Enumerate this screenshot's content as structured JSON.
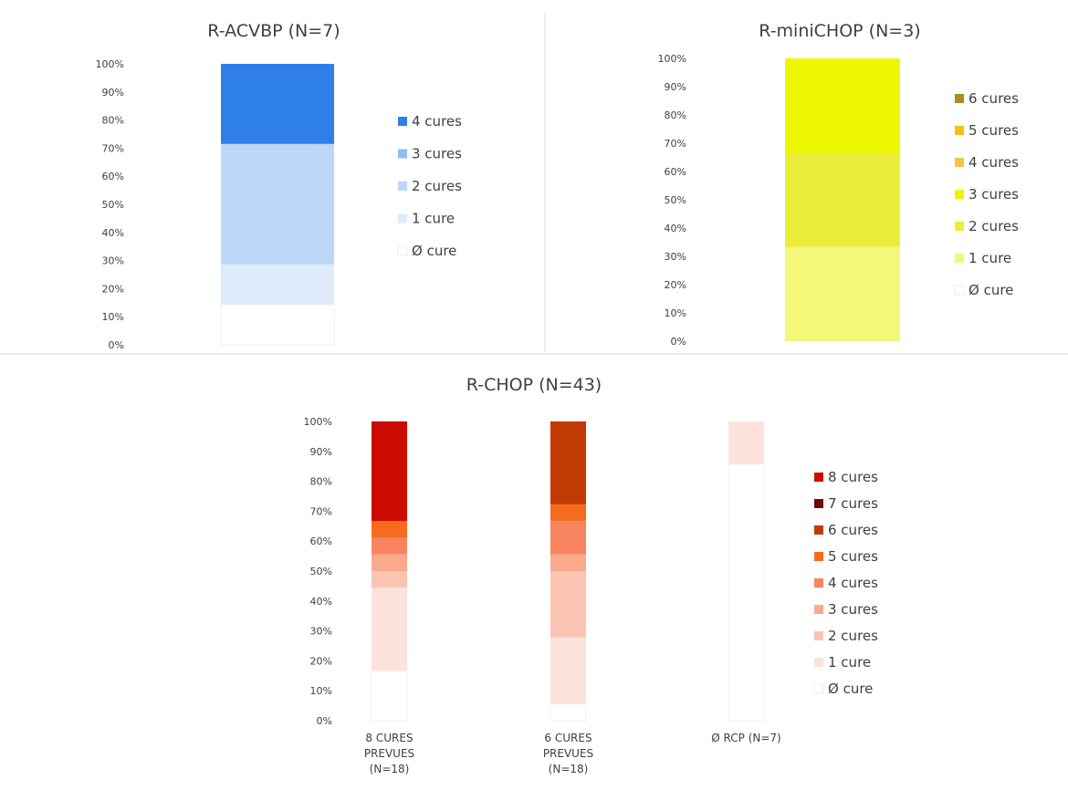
{
  "chart_data": [
    {
      "type": "bar",
      "stacked": true,
      "title": "R-ACVBP (N=7)",
      "ylim": [
        0,
        100
      ],
      "yticks": [
        "0%",
        "10%",
        "20%",
        "30%",
        "40%",
        "50%",
        "60%",
        "70%",
        "80%",
        "90%",
        "100%"
      ],
      "categories": [
        ""
      ],
      "series": [
        {
          "name": "Ø cure",
          "color": "#ffffff",
          "values": [
            14.3
          ]
        },
        {
          "name": "1 cure",
          "color": "#ddebfb",
          "values": [
            14.3
          ]
        },
        {
          "name": "2 cures",
          "color": "#bdd7f8",
          "values": [
            42.9
          ]
        },
        {
          "name": "3 cures",
          "color": "#92bdf1",
          "values": [
            0
          ]
        },
        {
          "name": "4 cures",
          "color": "#2f7fe9",
          "values": [
            28.5
          ]
        }
      ],
      "legend": [
        "4 cures",
        "3 cures",
        "2 cures",
        "1 cure",
        "Ø cure"
      ],
      "legend_position": "right"
    },
    {
      "type": "bar",
      "stacked": true,
      "title": "R-miniCHOP (N=3)",
      "ylim": [
        0,
        100
      ],
      "yticks": [
        "0%",
        "10%",
        "20%",
        "30%",
        "40%",
        "50%",
        "60%",
        "70%",
        "80%",
        "90%",
        "100%"
      ],
      "categories": [
        ""
      ],
      "series": [
        {
          "name": "Ø cure",
          "color": "#ffffff",
          "values": [
            0
          ]
        },
        {
          "name": "1 cure",
          "color": "#f3f77a",
          "values": [
            33.3
          ]
        },
        {
          "name": "2 cures",
          "color": "#eaee3a",
          "values": [
            33.3
          ]
        },
        {
          "name": "3  cures",
          "color": "#edf700",
          "values": [
            33.4
          ]
        },
        {
          "name": "4  cures",
          "color": "#f6c344",
          "values": [
            0
          ]
        },
        {
          "name": "5  cures",
          "color": "#f4c20e",
          "values": [
            0
          ]
        },
        {
          "name": "6  cures",
          "color": "#b08c1c",
          "values": [
            0
          ]
        }
      ],
      "legend": [
        "6  cures",
        "5  cures",
        "4  cures",
        "3  cures",
        "2 cures",
        "1 cure",
        "Ø cure"
      ],
      "legend_position": "right"
    },
    {
      "type": "bar",
      "stacked": true,
      "title": "R-CHOP (N=43)",
      "ylim": [
        0,
        100
      ],
      "yticks": [
        "0%",
        "10%",
        "20%",
        "30%",
        "40%",
        "50%",
        "60%",
        "70%",
        "80%",
        "90%",
        "100%"
      ],
      "categories": [
        [
          "8 CURES",
          "PREVUES",
          "(N=18)"
        ],
        [
          "6 CURES",
          "PREVUES",
          "(N=18)"
        ],
        [
          "Ø RCP (N=7)"
        ]
      ],
      "series": [
        {
          "name": "Ø cure",
          "color": "#ffffff",
          "values": [
            16.7,
            5.6,
            85.7
          ]
        },
        {
          "name": "1 cure",
          "color": "#fde3dc",
          "values": [
            27.8,
            22.2,
            14.3
          ]
        },
        {
          "name": "2 cures",
          "color": "#fbc4b2",
          "values": [
            5.5,
            22.2,
            0
          ]
        },
        {
          "name": "3 cures",
          "color": "#f9a98c",
          "values": [
            5.6,
            5.6,
            0
          ]
        },
        {
          "name": "4 cures",
          "color": "#f8845f",
          "values": [
            5.5,
            11.1,
            0
          ]
        },
        {
          "name": "5 cures",
          "color": "#f56c1e",
          "values": [
            5.6,
            5.6,
            0
          ]
        },
        {
          "name": "6 cures",
          "color": "#c23a05",
          "values": [
            0,
            27.7,
            0
          ]
        },
        {
          "name": "7 cures",
          "color": "#6b0a0a",
          "values": [
            0,
            0,
            0
          ]
        },
        {
          "name": "8 cures",
          "color": "#cc0b00",
          "values": [
            33.3,
            0,
            0
          ]
        }
      ],
      "legend": [
        "8 cures",
        "7 cures",
        "6 cures",
        "5 cures",
        "4 cures",
        "3 cures",
        "2 cures",
        "1 cure",
        "Ø cure"
      ],
      "legend_position": "right"
    }
  ]
}
